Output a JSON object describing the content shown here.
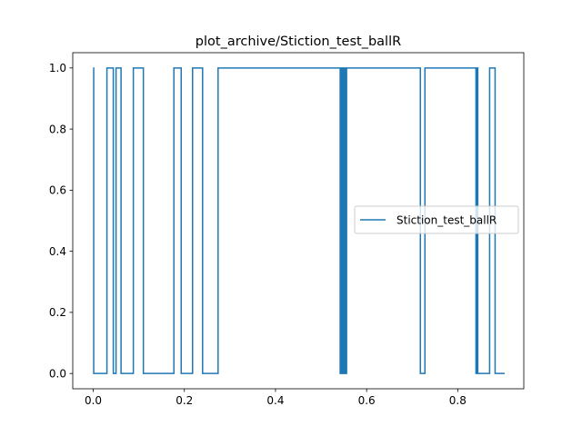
{
  "chart_data": {
    "type": "line",
    "title": "plot_archive/Stiction_test_ballR",
    "xlabel": "",
    "ylabel": "",
    "xlim": [
      -0.045,
      0.945
    ],
    "ylim": [
      -0.05,
      1.05
    ],
    "x_ticks": [
      0.0,
      0.2,
      0.4,
      0.6,
      0.8
    ],
    "x_tick_labels": [
      "0.0",
      "0.2",
      "0.4",
      "0.6",
      "0.8"
    ],
    "y_ticks": [
      0.0,
      0.2,
      0.4,
      0.6,
      0.8,
      1.0
    ],
    "y_tick_labels": [
      "0.0",
      "0.2",
      "0.4",
      "0.6",
      "0.8",
      "1.0"
    ],
    "grid": false,
    "legend_position": "center-right",
    "series": [
      {
        "name": "Stiction_test_ballR",
        "color": "#1f77b4",
        "step": "post",
        "x": [
          0.0,
          0.001,
          0.03,
          0.044,
          0.05,
          0.061,
          0.088,
          0.11,
          0.177,
          0.193,
          0.218,
          0.24,
          0.274,
          0.542,
          0.544,
          0.546,
          0.548,
          0.55,
          0.552,
          0.554,
          0.556,
          0.718,
          0.728,
          0.84,
          0.841,
          0.842,
          0.843,
          0.844,
          0.87,
          0.882,
          0.903
        ],
        "y": [
          1,
          0,
          1,
          0,
          1,
          0,
          1,
          0,
          1,
          0,
          1,
          0,
          1,
          0,
          1,
          0,
          1,
          0,
          1,
          0,
          1,
          0,
          1,
          0,
          1,
          0,
          1,
          0,
          1,
          0,
          0
        ]
      }
    ]
  }
}
